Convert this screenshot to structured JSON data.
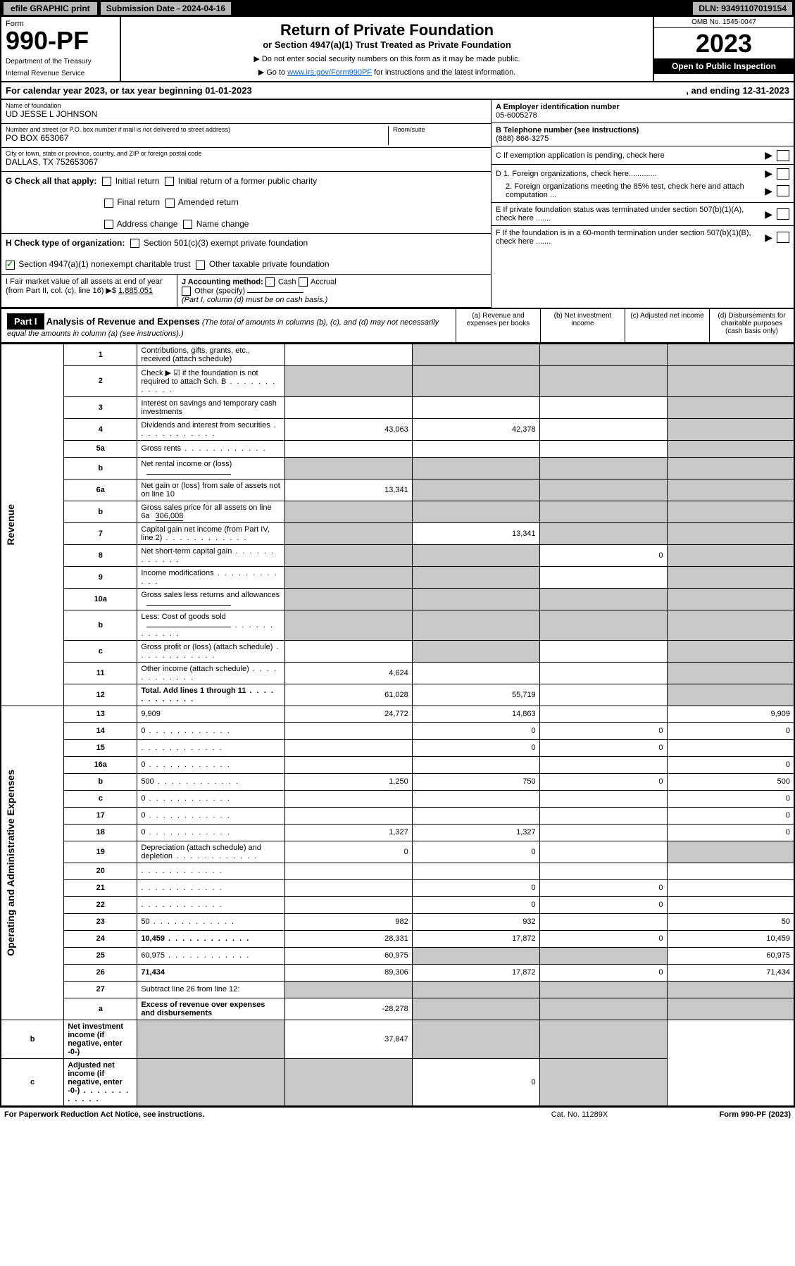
{
  "topbar": {
    "efile": "efile GRAPHIC print",
    "sub_label": "Submission Date - 2024-04-16",
    "dln_label": "DLN: 93491107019154"
  },
  "header": {
    "form_word": "Form",
    "form_num": "990-PF",
    "dept": "Department of the Treasury",
    "irs": "Internal Revenue Service",
    "title": "Return of Private Foundation",
    "subtitle": "or Section 4947(a)(1) Trust Treated as Private Foundation",
    "note1": "▶ Do not enter social security numbers on this form as it may be made public.",
    "note2_pre": "▶ Go to ",
    "note2_link": "www.irs.gov/Form990PF",
    "note2_post": " for instructions and the latest information.",
    "omb": "OMB No. 1545-0047",
    "year": "2023",
    "open": "Open to Public Inspection"
  },
  "calyear": {
    "left": "For calendar year 2023, or tax year beginning 01-01-2023",
    "right": ", and ending 12-31-2023"
  },
  "info": {
    "name_lbl": "Name of foundation",
    "name_val": "UD JESSE L JOHNSON",
    "addr_lbl": "Number and street (or P.O. box number if mail is not delivered to street address)",
    "addr_val": "PO BOX 653067",
    "room_lbl": "Room/suite",
    "city_lbl": "City or town, state or province, country, and ZIP or foreign postal code",
    "city_val": "DALLAS, TX  752653067",
    "a_lbl": "A Employer identification number",
    "a_val": "05-6005278",
    "b_lbl": "B Telephone number (see instructions)",
    "b_val": "(888) 866-3275",
    "c_lbl": "C If exemption application is pending, check here",
    "d1_lbl": "D 1. Foreign organizations, check here.............",
    "d2_lbl": "2. Foreign organizations meeting the 85% test, check here and attach computation ...",
    "e_lbl": "E If private foundation status was terminated under section 507(b)(1)(A), check here .......",
    "f_lbl": "F If the foundation is in a 60-month termination under section 507(b)(1)(B), check here .......",
    "g_lbl": "G Check all that apply:",
    "g_opts": [
      "Initial return",
      "Final return",
      "Address change",
      "Initial return of a former public charity",
      "Amended return",
      "Name change"
    ],
    "h_lbl": "H Check type of organization:",
    "h_opt1": "Section 501(c)(3) exempt private foundation",
    "h_opt2": "Section 4947(a)(1) nonexempt charitable trust",
    "h_opt3": "Other taxable private foundation",
    "i_lbl": "I Fair market value of all assets at end of year (from Part II, col. (c), line 16) ▶$",
    "i_val": "1,885,051",
    "j_lbl": "J Accounting method:",
    "j_opts": [
      "Cash",
      "Accrual",
      "Other (specify)"
    ],
    "j_note": "(Part I, column (d) must be on cash basis.)"
  },
  "part1": {
    "hdr": "Part I",
    "title": "Analysis of Revenue and Expenses",
    "note": "(The total of amounts in columns (b), (c), and (d) may not necessarily equal the amounts in column (a) (see instructions).)",
    "col_a": "(a) Revenue and expenses per books",
    "col_b": "(b) Net investment income",
    "col_c": "(c) Adjusted net income",
    "col_d": "(d) Disbursements for charitable purposes (cash basis only)"
  },
  "sections": {
    "revenue": "Revenue",
    "expenses": "Operating and Administrative Expenses"
  },
  "rows": [
    {
      "n": "1",
      "d": "Contributions, gifts, grants, etc., received (attach schedule)",
      "a": "",
      "b_s": true,
      "c_s": true,
      "d_s": true
    },
    {
      "n": "2",
      "d": "Check ▶ ☑ if the foundation is not required to attach Sch. B",
      "dots": true,
      "a_s": true,
      "b_s": true,
      "c_s": true,
      "d_s": true
    },
    {
      "n": "3",
      "d": "Interest on savings and temporary cash investments",
      "a": "",
      "b": "",
      "c": "",
      "d_s": true
    },
    {
      "n": "4",
      "d": "Dividends and interest from securities",
      "dots": true,
      "a": "43,063",
      "b": "42,378",
      "c": "",
      "d_s": true
    },
    {
      "n": "5a",
      "d": "Gross rents",
      "dots": true,
      "a": "",
      "b": "",
      "c": "",
      "d_s": true
    },
    {
      "n": "b",
      "d": "Net rental income or (loss)",
      "inline": true,
      "a_s": true,
      "b_s": true,
      "c_s": true,
      "d_s": true
    },
    {
      "n": "6a",
      "d": "Net gain or (loss) from sale of assets not on line 10",
      "a": "13,341",
      "b_s": true,
      "c_s": true,
      "d_s": true
    },
    {
      "n": "b",
      "d": "Gross sales price for all assets on line 6a",
      "inline_val": "306,008",
      "a_s": true,
      "b_s": true,
      "c_s": true,
      "d_s": true
    },
    {
      "n": "7",
      "d": "Capital gain net income (from Part IV, line 2)",
      "dots": true,
      "a_s": true,
      "b": "13,341",
      "c_s": true,
      "d_s": true
    },
    {
      "n": "8",
      "d": "Net short-term capital gain",
      "dots": true,
      "a_s": true,
      "b_s": true,
      "c": "0",
      "d_s": true
    },
    {
      "n": "9",
      "d": "Income modifications",
      "dots": true,
      "a_s": true,
      "b_s": true,
      "c": "",
      "d_s": true
    },
    {
      "n": "10a",
      "d": "Gross sales less returns and allowances",
      "inline": true,
      "a_s": true,
      "b_s": true,
      "c_s": true,
      "d_s": true
    },
    {
      "n": "b",
      "d": "Less: Cost of goods sold",
      "dots": true,
      "inline": true,
      "a_s": true,
      "b_s": true,
      "c_s": true,
      "d_s": true
    },
    {
      "n": "c",
      "d": "Gross profit or (loss) (attach schedule)",
      "dots": true,
      "a": "",
      "b_s": true,
      "c": "",
      "d_s": true
    },
    {
      "n": "11",
      "d": "Other income (attach schedule)",
      "dots": true,
      "a": "4,624",
      "b": "",
      "c": "",
      "d_s": true
    },
    {
      "n": "12",
      "d": "Total. Add lines 1 through 11",
      "dots": true,
      "bold": true,
      "a": "61,028",
      "b": "55,719",
      "c": "",
      "d_s": true
    },
    {
      "n": "13",
      "d": "9,909",
      "a": "24,772",
      "b": "14,863",
      "c": ""
    },
    {
      "n": "14",
      "d": "0",
      "dots": true,
      "a": "",
      "b": "0",
      "c": "0"
    },
    {
      "n": "15",
      "d": "",
      "dots": true,
      "a": "",
      "b": "0",
      "c": "0"
    },
    {
      "n": "16a",
      "d": "0",
      "dots": true,
      "a": "",
      "b": "",
      "c": ""
    },
    {
      "n": "b",
      "d": "500",
      "dots": true,
      "a": "1,250",
      "b": "750",
      "c": "0"
    },
    {
      "n": "c",
      "d": "0",
      "dots": true,
      "a": "",
      "b": "",
      "c": ""
    },
    {
      "n": "17",
      "d": "0",
      "dots": true,
      "a": "",
      "b": "",
      "c": ""
    },
    {
      "n": "18",
      "d": "0",
      "dots": true,
      "a": "1,327",
      "b": "1,327",
      "c": ""
    },
    {
      "n": "19",
      "d": "Depreciation (attach schedule) and depletion",
      "dots": true,
      "a": "0",
      "b": "0",
      "c": "",
      "d_s": true
    },
    {
      "n": "20",
      "d": "",
      "dots": true,
      "a": "",
      "b": "",
      "c": ""
    },
    {
      "n": "21",
      "d": "",
      "dots": true,
      "a": "",
      "b": "0",
      "c": "0"
    },
    {
      "n": "22",
      "d": "",
      "dots": true,
      "a": "",
      "b": "0",
      "c": "0"
    },
    {
      "n": "23",
      "d": "50",
      "dots": true,
      "a": "982",
      "b": "932",
      "c": ""
    },
    {
      "n": "24",
      "d": "10,459",
      "dots": true,
      "bold": true,
      "a": "28,331",
      "b": "17,872",
      "c": "0"
    },
    {
      "n": "25",
      "d": "60,975",
      "dots": true,
      "a": "60,975",
      "b_s": true,
      "c_s": true
    },
    {
      "n": "26",
      "d": "71,434",
      "bold": true,
      "a": "89,306",
      "b": "17,872",
      "c": "0"
    },
    {
      "n": "27",
      "d": "Subtract line 26 from line 12:",
      "a_s": true,
      "b_s": true,
      "c_s": true,
      "d_s": true
    },
    {
      "n": "a",
      "d": "Excess of revenue over expenses and disbursements",
      "bold": true,
      "a": "-28,278",
      "b_s": true,
      "c_s": true,
      "d_s": true
    },
    {
      "n": "b",
      "d": "Net investment income (if negative, enter -0-)",
      "bold": true,
      "a_s": true,
      "b": "37,847",
      "c_s": true,
      "d_s": true
    },
    {
      "n": "c",
      "d": "Adjusted net income (if negative, enter -0-)",
      "dots": true,
      "bold": true,
      "a_s": true,
      "b_s": true,
      "c": "0",
      "d_s": true
    }
  ],
  "footer": {
    "l": "For Paperwork Reduction Act Notice, see instructions.",
    "m": "Cat. No. 11289X",
    "r": "Form 990-PF (2023)"
  }
}
